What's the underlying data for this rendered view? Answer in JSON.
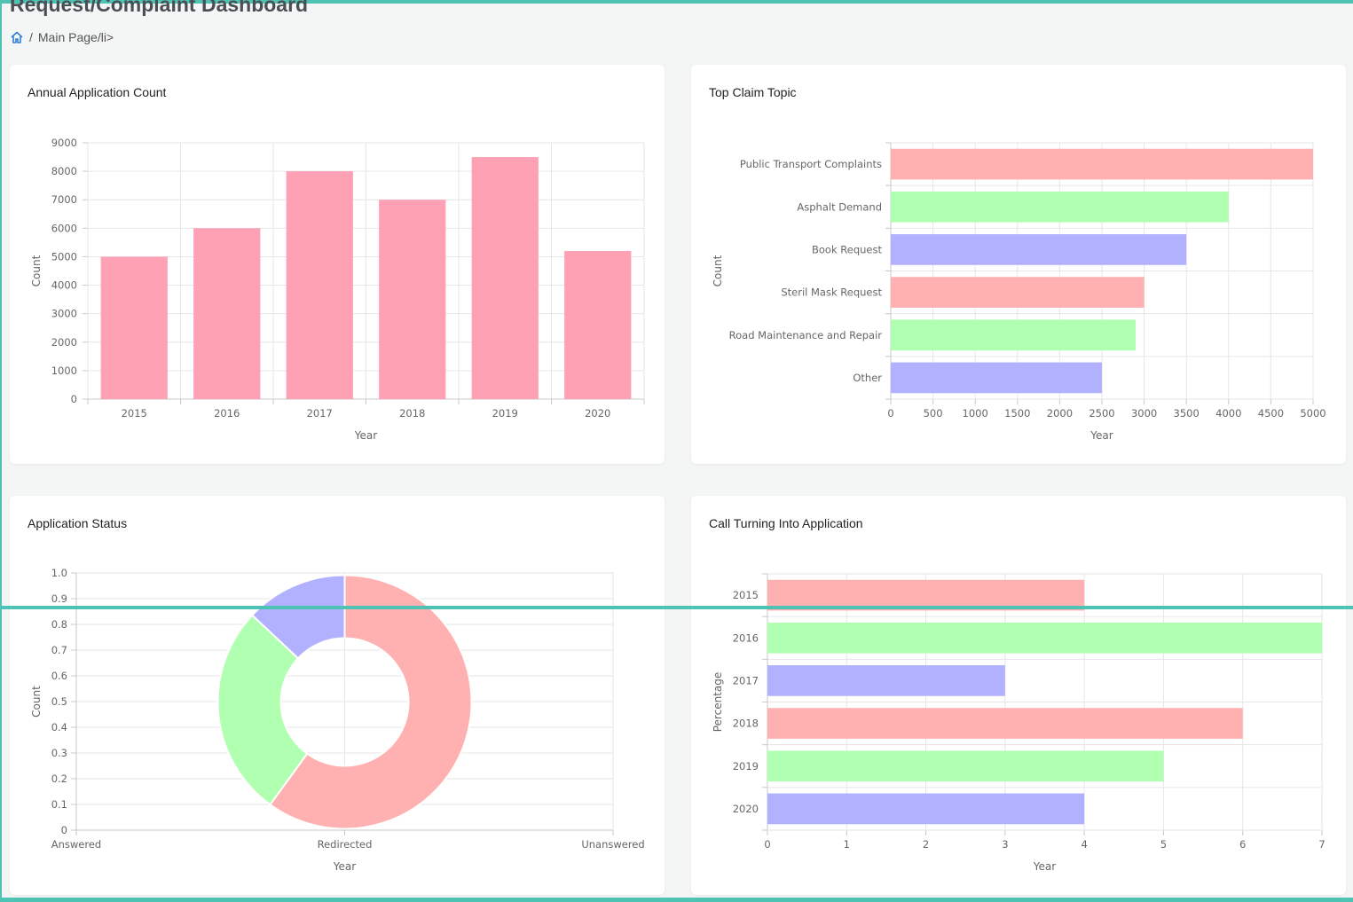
{
  "page": {
    "title": "Request/Complaint Dashboard",
    "breadcrumb": {
      "home_icon": "home-icon",
      "separator": "/",
      "current": "Main Page/li>"
    }
  },
  "colors": {
    "accent": "#4fc3b3",
    "bar_pink": "#ffa1b5",
    "red": "#ffb1b1",
    "green": "#b1ffb1",
    "blue": "#b1b1ff"
  },
  "chart_data": [
    {
      "id": "annual",
      "type": "bar",
      "title": "Annual Application Count",
      "categories": [
        "2015",
        "2016",
        "2017",
        "2018",
        "2019",
        "2020"
      ],
      "values": [
        5000,
        6000,
        8000,
        7000,
        8500,
        5200
      ],
      "xlabel": "Year",
      "ylabel": "Count",
      "ylim": [
        0,
        9000
      ],
      "yticks": [
        0,
        1000,
        2000,
        3000,
        4000,
        5000,
        6000,
        7000,
        8000,
        9000
      ]
    },
    {
      "id": "topic",
      "type": "bar",
      "orientation": "horizontal",
      "title": "Top Claim Topic",
      "categories": [
        "Public Transport Complaints",
        "Asphalt Demand",
        "Book Request",
        "Steril Mask Request",
        "Road Maintenance and Repair",
        "Other"
      ],
      "values": [
        5000,
        4000,
        3500,
        3000,
        2900,
        2500
      ],
      "xlabel": "Year",
      "ylabel": "Count",
      "xlim": [
        0,
        5000
      ],
      "xticks": [
        0,
        500,
        1000,
        1500,
        2000,
        2500,
        3000,
        3500,
        4000,
        4500,
        5000
      ]
    },
    {
      "id": "status",
      "type": "pie",
      "title": "Application Status",
      "labels": [
        "Answered",
        "Redirected",
        "Unanswered"
      ],
      "values": [
        60,
        27,
        13
      ],
      "slice_order": [
        "red",
        "green",
        "blue"
      ],
      "xlabel": "Year",
      "ylabel": "Count",
      "ylim": [
        0,
        1.0
      ],
      "yticks": [
        "0",
        "0.1",
        "0.2",
        "0.3",
        "0.4",
        "0.5",
        "0.6",
        "0.7",
        "0.8",
        "0.9",
        "1.0"
      ]
    },
    {
      "id": "calls",
      "type": "bar",
      "orientation": "horizontal",
      "title": "Call Turning Into Application",
      "categories": [
        "2015",
        "2016",
        "2017",
        "2018",
        "2019",
        "2020"
      ],
      "values": [
        4,
        7,
        3,
        6,
        5,
        4
      ],
      "xlabel": "Year",
      "ylabel": "Percentage",
      "xlim": [
        0,
        7
      ],
      "xticks": [
        0,
        1,
        2,
        3,
        4,
        5,
        6,
        7
      ]
    }
  ]
}
